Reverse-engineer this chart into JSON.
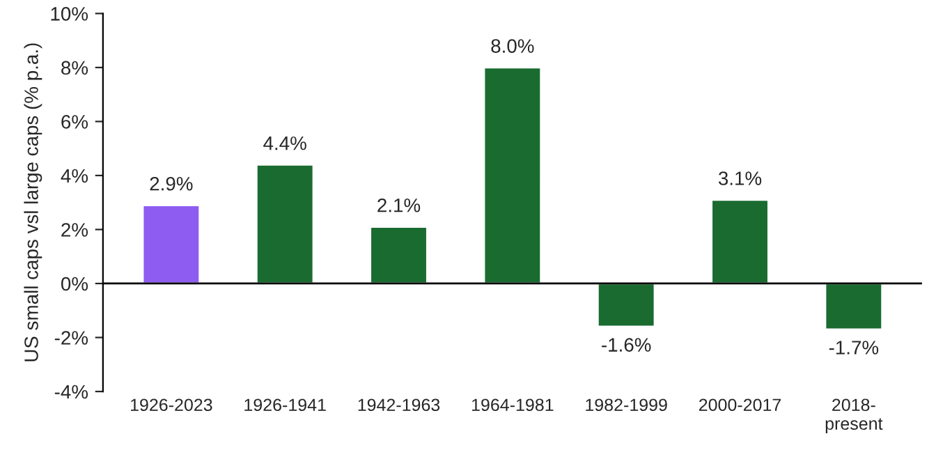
{
  "chart_data": {
    "type": "bar",
    "ylabel": "US small caps vsl large caps (% p.a.)",
    "categories": [
      "1926-2023",
      "1926-1941",
      "1942-1963",
      "1964-1981",
      "1982-1999",
      "2000-2017",
      "2018-\npresent"
    ],
    "values": [
      2.9,
      4.4,
      2.1,
      8.0,
      -1.6,
      3.1,
      -1.7
    ],
    "colors": [
      "#8e5cf0",
      "#1a6b30",
      "#1a6b30",
      "#1a6b30",
      "#1a6b30",
      "#1a6b30",
      "#1a6b30"
    ],
    "value_labels": [
      "2.9%",
      "4.4%",
      "2.1%",
      "8.0%",
      "-1.6%",
      "3.1%",
      "-1.7%"
    ],
    "ylim": [
      -4,
      10
    ],
    "yticks": [
      {
        "value": -4,
        "label": "-4%"
      },
      {
        "value": -2,
        "label": "-2%"
      },
      {
        "value": 0,
        "label": "0%"
      },
      {
        "value": 2,
        "label": "2%"
      },
      {
        "value": 4,
        "label": "4%"
      },
      {
        "value": 6,
        "label": "6%"
      },
      {
        "value": 8,
        "label": "8%"
      },
      {
        "value": 10,
        "label": "10%"
      }
    ],
    "ref_lines": [
      {
        "axis": "y",
        "value": 0,
        "color": "#000000"
      }
    ],
    "grid": false,
    "legend": false
  }
}
